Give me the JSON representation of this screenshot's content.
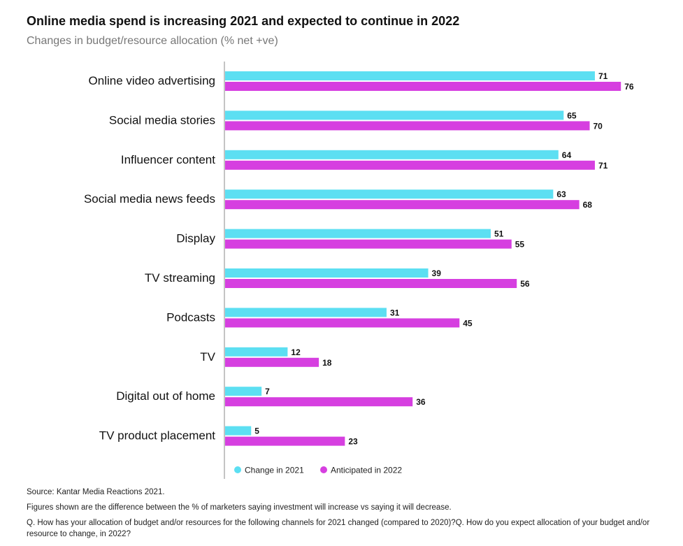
{
  "title": "Online media spend is increasing 2021 and expected to continue in 2022",
  "subtitle": "Changes in budget/resource allocation (% net +ve)",
  "colors": {
    "series_2021": "#5cdff2",
    "series_2022": "#d63fe0",
    "axis": "#888888"
  },
  "chart_data": {
    "type": "bar",
    "orientation": "horizontal",
    "title": "Online media spend is increasing 2021 and expected to continue in 2022",
    "subtitle": "Changes in budget/resource allocation (% net +ve)",
    "categories": [
      "Online video advertising",
      "Social media stories",
      "Influencer content",
      "Social media news feeds",
      "Display",
      "TV streaming",
      "Podcasts",
      "TV",
      "Digital out of home",
      "TV product placement"
    ],
    "series": [
      {
        "name": "Change in 2021",
        "values": [
          71,
          65,
          64,
          63,
          51,
          39,
          31,
          12,
          7,
          5
        ]
      },
      {
        "name": "Anticipated in 2022",
        "values": [
          76,
          70,
          71,
          68,
          55,
          56,
          45,
          18,
          36,
          23
        ]
      }
    ],
    "xlim": [
      0,
      80
    ],
    "grid": false,
    "legend": "bottom"
  },
  "footnotes": {
    "source": "Source: Kantar Media Reactions 2021.",
    "figures": "Figures shown are the difference between the % of marketers saying investment will increase vs saying it will decrease.",
    "question": "Q. How has your allocation of budget and/or resources for the following channels for 2021 changed (compared to 2020)?Q. How do you expect allocation of your budget and/or resource to change, in 2022?"
  }
}
